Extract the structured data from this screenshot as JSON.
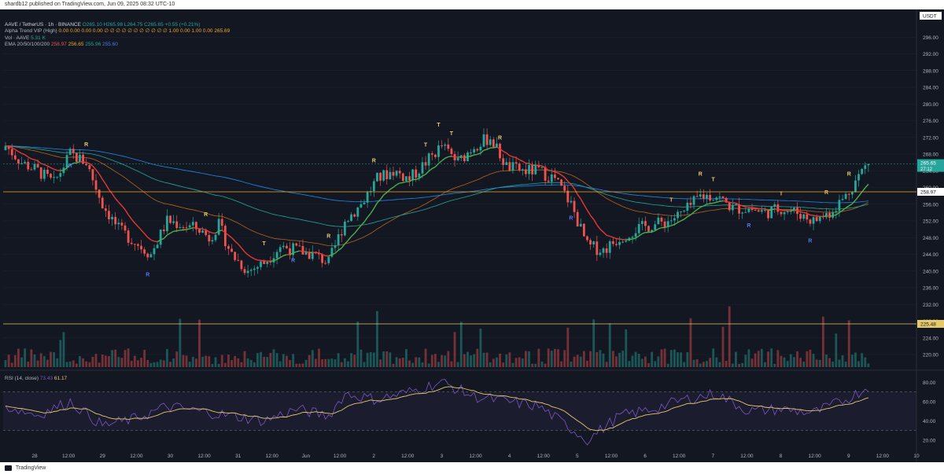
{
  "header": {
    "publisher_line": "shardb12 published on TradingView.com, Jun 09, 2025 08:32 UTC-10"
  },
  "footer": {
    "brand": "TradingView"
  },
  "legend": {
    "symbol": "AAVE / TetherUS · 1h · BINANCE",
    "ohlc": "O265.10 H265.98 L264.75 C265.65 +0.55 (+0.21%)",
    "indicator1": "Alpha Trend VIP (High)",
    "indicator1_values": "0.00  0.00  0.00  0.00  ∅  ∅  ∅  ∅  ∅  ∅  ∅  ∅  ∅  ∅  ∅  1.00  0.00  1.00  0.00  265.69",
    "volume": "Vol · AAVE",
    "volume_value": "5.31 K",
    "ema": "EMA 20/50/100/200",
    "ema_values": [
      "258.97",
      "256.65",
      "255.96",
      "255.60"
    ]
  },
  "price_axis": {
    "currency": "USDT",
    "current_price": "265.65",
    "countdown": "27:12",
    "support_price": "258.97",
    "volume_line_label": "225.48"
  },
  "rsi": {
    "label": "RSI (14, close)",
    "value1": "73.43",
    "value2": "61.17"
  },
  "colors": {
    "background": "#131722",
    "up": "#26a69a",
    "down": "#ef5350",
    "alpha_up": "#4caf50",
    "alpha_down": "#e53935",
    "ema_short": "#b5651d",
    "ema_long": "#1e88e5",
    "support": "#f5a623",
    "rsi_line": "#7e57c2",
    "rsi_ma": "#e6c96b"
  },
  "chart_data": {
    "type": "candlestick",
    "symbol": "AAVE/USDT",
    "timeframe": "1h",
    "y_ticks": [
      220,
      224,
      228,
      232,
      236,
      240,
      244,
      248,
      252,
      256,
      260,
      264,
      268,
      272,
      276,
      280,
      284,
      288,
      292,
      296
    ],
    "ylim": [
      217,
      300
    ],
    "x_ticks": [
      "28",
      "12:00",
      "29",
      "12:00",
      "30",
      "12:00",
      "31",
      "12:00",
      "Jun",
      "12:00",
      "2",
      "12:00",
      "3",
      "12:00",
      "4",
      "12:00",
      "5",
      "12:00",
      "6",
      "12:00",
      "7",
      "12:00",
      "8",
      "12:00",
      "9",
      "12:00",
      "10"
    ],
    "price_path": [
      [
        0,
        270
      ],
      [
        5,
        266
      ],
      [
        10,
        264
      ],
      [
        15,
        261
      ],
      [
        20,
        268
      ],
      [
        25,
        266
      ],
      [
        30,
        256
      ],
      [
        35,
        250
      ],
      [
        40,
        247
      ],
      [
        45,
        244
      ],
      [
        50,
        252
      ],
      [
        55,
        251
      ],
      [
        60,
        250
      ],
      [
        63,
        248
      ],
      [
        66,
        251
      ],
      [
        70,
        244
      ],
      [
        75,
        240
      ],
      [
        80,
        242
      ],
      [
        85,
        246
      ],
      [
        90,
        245
      ],
      [
        95,
        244
      ],
      [
        100,
        242
      ],
      [
        105,
        252
      ],
      [
        110,
        256
      ],
      [
        115,
        262
      ],
      [
        120,
        264
      ],
      [
        125,
        262
      ],
      [
        130,
        266
      ],
      [
        135,
        270
      ],
      [
        140,
        266
      ],
      [
        145,
        270
      ],
      [
        150,
        272
      ],
      [
        155,
        265
      ],
      [
        160,
        264
      ],
      [
        165,
        264
      ],
      [
        170,
        262
      ],
      [
        175,
        256
      ],
      [
        180,
        246
      ],
      [
        185,
        245
      ],
      [
        190,
        248
      ],
      [
        195,
        250
      ],
      [
        200,
        251
      ],
      [
        205,
        252
      ],
      [
        210,
        254
      ],
      [
        215,
        258
      ],
      [
        220,
        258
      ],
      [
        225,
        255
      ],
      [
        230,
        255
      ],
      [
        235,
        254
      ],
      [
        240,
        255
      ],
      [
        245,
        254
      ],
      [
        250,
        252
      ],
      [
        255,
        254
      ],
      [
        260,
        258
      ],
      [
        265,
        264
      ],
      [
        267,
        266
      ]
    ],
    "volume_reference": 225.48,
    "support_level": 258.97,
    "rsi_ticks": [
      20,
      40,
      60,
      80
    ],
    "rsi_ylim": [
      10,
      90
    ],
    "rsi_levels": [
      30,
      70
    ],
    "rsi_path": [
      [
        0,
        55
      ],
      [
        10,
        46
      ],
      [
        20,
        60
      ],
      [
        30,
        35
      ],
      [
        40,
        42
      ],
      [
        50,
        55
      ],
      [
        60,
        50
      ],
      [
        70,
        45
      ],
      [
        80,
        40
      ],
      [
        90,
        52
      ],
      [
        100,
        45
      ],
      [
        105,
        68
      ],
      [
        115,
        62
      ],
      [
        125,
        70
      ],
      [
        135,
        80
      ],
      [
        145,
        65
      ],
      [
        155,
        60
      ],
      [
        165,
        55
      ],
      [
        175,
        32
      ],
      [
        180,
        20
      ],
      [
        190,
        45
      ],
      [
        200,
        52
      ],
      [
        210,
        62
      ],
      [
        220,
        68
      ],
      [
        230,
        50
      ],
      [
        240,
        52
      ],
      [
        250,
        48
      ],
      [
        260,
        62
      ],
      [
        267,
        75
      ]
    ],
    "markers": [
      {
        "label": "R",
        "index": 25,
        "color": "#e6c96b"
      },
      {
        "label": "R",
        "index": 20,
        "color": "#4b7bec"
      },
      {
        "label": "R",
        "index": 44,
        "color": "#4b7bec"
      },
      {
        "label": "R",
        "index": 62,
        "color": "#e6c96b"
      },
      {
        "label": "T",
        "index": 80,
        "color": "#e6c96b"
      },
      {
        "label": "R",
        "index": 89,
        "color": "#4b7bec"
      },
      {
        "label": "R",
        "index": 100,
        "color": "#e6c96b"
      },
      {
        "label": "R",
        "index": 114,
        "color": "#e6c96b"
      },
      {
        "label": "T",
        "index": 130,
        "color": "#e6c96b"
      },
      {
        "label": "T",
        "index": 134,
        "color": "#e6c96b"
      },
      {
        "label": "R",
        "index": 153,
        "color": "#e6c96b"
      },
      {
        "label": "T",
        "index": 138,
        "color": "#e6c96b"
      },
      {
        "label": "R",
        "index": 175,
        "color": "#4b7bec"
      },
      {
        "label": "T",
        "index": 206,
        "color": "#e6c96b"
      },
      {
        "label": "R",
        "index": 215,
        "color": "#e6c96b"
      },
      {
        "label": "T",
        "index": 219,
        "color": "#e6c96b"
      },
      {
        "label": "R",
        "index": 230,
        "color": "#4b7bec"
      },
      {
        "label": "T",
        "index": 240,
        "color": "#e6c96b"
      },
      {
        "label": "R",
        "index": 249,
        "color": "#4b7bec"
      },
      {
        "label": "R",
        "index": 254,
        "color": "#e6c96b"
      },
      {
        "label": "R",
        "index": 261,
        "color": "#e6c96b"
      }
    ]
  }
}
